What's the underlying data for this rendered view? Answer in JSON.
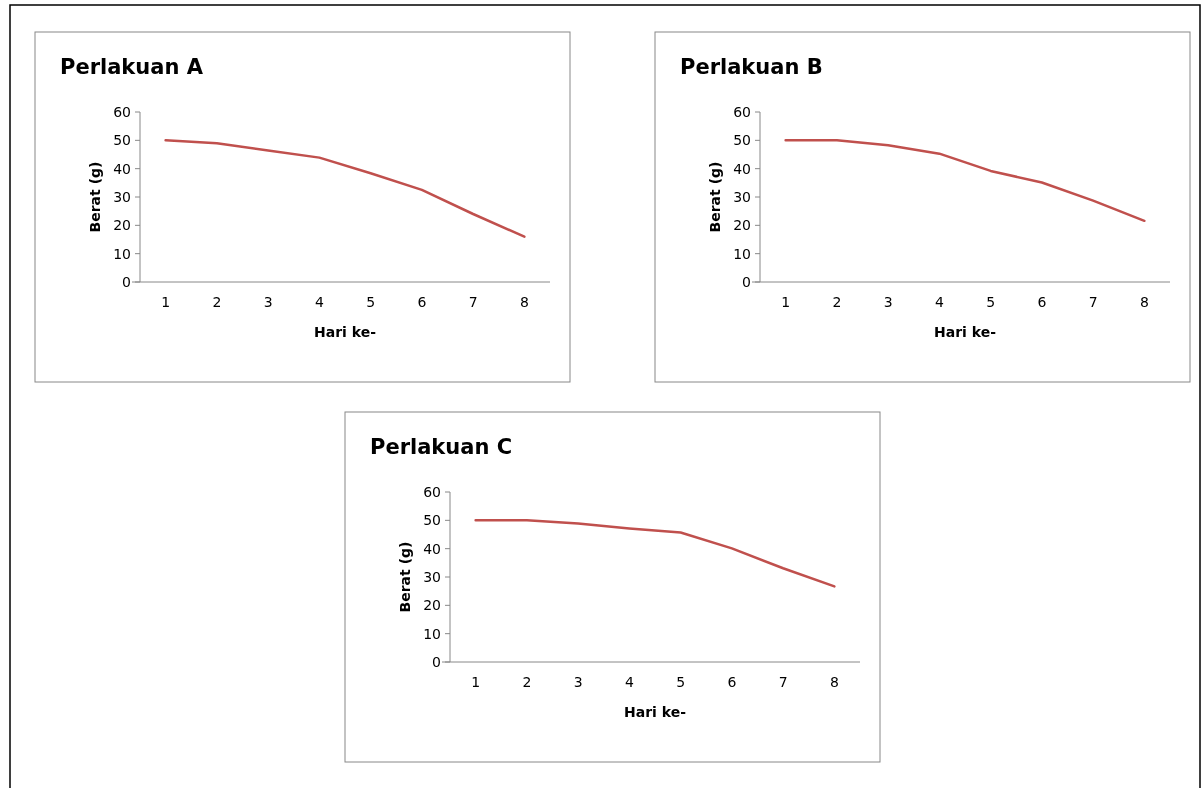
{
  "chart_data": [
    {
      "type": "line",
      "title": "Perlakuan A",
      "xlabel": "Hari ke-",
      "ylabel": "Berat (g)",
      "categories": [
        "1",
        "2",
        "3",
        "4",
        "5",
        "6",
        "7",
        "8"
      ],
      "series": [
        {
          "color": "#c0504d",
          "values": [
            50,
            49,
            46.4,
            43.9,
            38.4,
            32.5,
            24,
            16
          ]
        }
      ],
      "ylim": [
        0,
        60
      ],
      "yticks": [
        0,
        10,
        20,
        30,
        40,
        50,
        60
      ],
      "grid": false
    },
    {
      "type": "line",
      "title": "Perlakuan B",
      "xlabel": "Hari ke-",
      "ylabel": "Berat (g)",
      "categories": [
        "1",
        "2",
        "3",
        "4",
        "5",
        "6",
        "7",
        "8"
      ],
      "series": [
        {
          "color": "#c0504d",
          "values": [
            50,
            50,
            48.3,
            45.3,
            39.2,
            35.1,
            28.7,
            21.6
          ]
        }
      ],
      "ylim": [
        0,
        60
      ],
      "yticks": [
        0,
        10,
        20,
        30,
        40,
        50,
        60
      ],
      "grid": false
    },
    {
      "type": "line",
      "title": "Perlakuan C",
      "xlabel": "Hari ke-",
      "ylabel": "Berat (g)",
      "categories": [
        "1",
        "2",
        "3",
        "4",
        "5",
        "6",
        "7",
        "8"
      ],
      "series": [
        {
          "color": "#c0504d",
          "values": [
            50,
            50,
            48.9,
            47.1,
            45.7,
            40.1,
            33.1,
            26.7
          ]
        }
      ],
      "ylim": [
        0,
        60
      ],
      "yticks": [
        0,
        10,
        20,
        30,
        40,
        50,
        60
      ],
      "grid": false
    }
  ]
}
